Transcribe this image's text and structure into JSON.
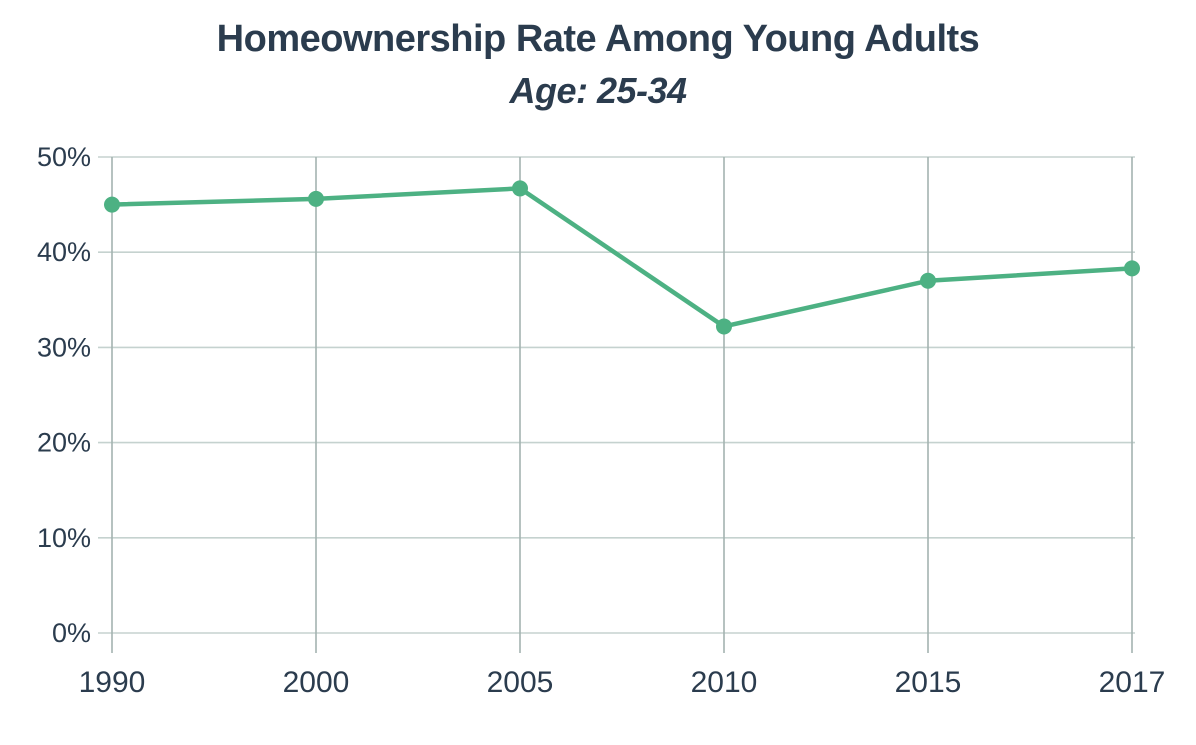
{
  "header": {
    "title": "Homeownership Rate Among Young Adults",
    "subtitle": "Age: 25-34",
    "title_color": "#2b3c4e"
  },
  "chart_data": {
    "type": "line",
    "title": "Homeownership Rate Among Young Adults",
    "subtitle": "Age: 25-34",
    "categories": [
      "1990",
      "2000",
      "2005",
      "2010",
      "2015",
      "2017"
    ],
    "series": [
      {
        "name": "Homeownership rate, age 25-34",
        "values": [
          45.0,
          45.6,
          46.7,
          32.2,
          37.0,
          38.3
        ]
      }
    ],
    "unit": "%",
    "xlabel": "",
    "ylabel": "",
    "ylim": [
      0,
      50
    ],
    "ytick_step": 10,
    "ytick_labels": [
      "0%",
      "10%",
      "20%",
      "30%",
      "40%",
      "50%"
    ],
    "grid": "both",
    "legend_position": "none",
    "colors": {
      "line": "#4db183",
      "point": "#4db183",
      "grid_horizontal": "#c5d2cf",
      "grid_vertical": "#a3b3b0",
      "labels": "#2b3c4e",
      "background": "#ffffff"
    }
  }
}
